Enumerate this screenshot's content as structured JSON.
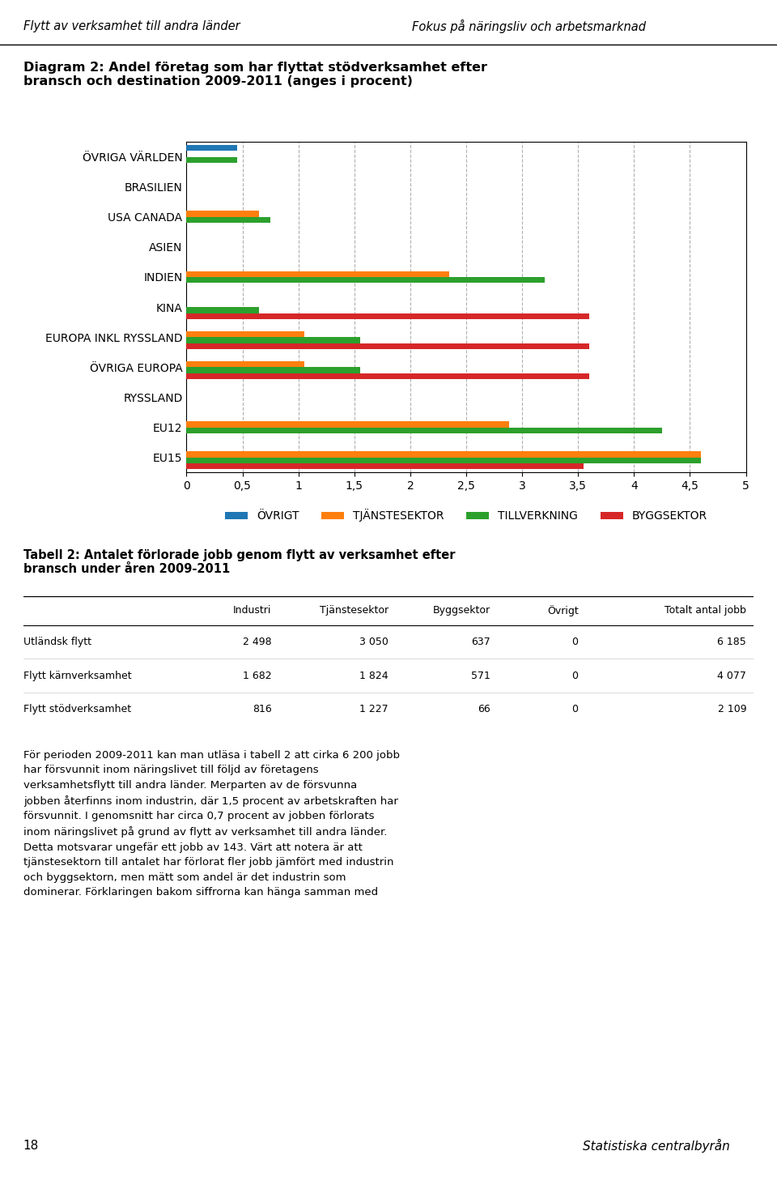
{
  "chart_data": {
    "type": "bar",
    "orientation": "horizontal",
    "title": "Diagram 2: Andel företag som har flyttat stödverksamhet efter\nbransch och destination 2009-2011 (anges i procent)",
    "categories": [
      "ÖVRIGA VÄRLDEN",
      "BRASILIEN",
      "USA CANADA",
      "ASIEN",
      "INDIEN",
      "KINA",
      "EUROPA INKL RYSSLAND",
      "ÖVRIGA EUROPA",
      "RYSSLAND",
      "EU12",
      "EU15"
    ],
    "series": [
      {
        "name": "ÖVRIGT",
        "values": [
          0.45,
          0.0,
          0.0,
          0.0,
          0.0,
          0.0,
          0.0,
          0.0,
          0.0,
          0.0,
          0.0
        ]
      },
      {
        "name": "TJÄNSTESEKTOR",
        "values": [
          0.0,
          0.0,
          0.65,
          0.0,
          2.35,
          0.0,
          1.05,
          1.05,
          0.0,
          2.88,
          4.6
        ]
      },
      {
        "name": "TILLVERKNING",
        "values": [
          0.45,
          0.0,
          0.75,
          0.0,
          3.2,
          0.65,
          1.55,
          1.55,
          0.0,
          4.25,
          4.6
        ]
      },
      {
        "name": "BYGGSEKTOR",
        "values": [
          0.0,
          0.0,
          0.0,
          0.0,
          0.0,
          3.6,
          3.6,
          3.6,
          0.0,
          0.0,
          3.55
        ]
      }
    ],
    "xlim": [
      0,
      5
    ],
    "xticks": [
      0,
      {
        "value": 0.5,
        "label": "0,5"
      },
      1,
      {
        "value": 1.5,
        "label": "1,5"
      },
      2,
      {
        "value": 2.5,
        "label": "2,5"
      },
      3,
      {
        "value": 3.5,
        "label": "3,5"
      },
      4,
      {
        "value": 4.5,
        "label": "4,5"
      },
      5
    ],
    "grid": true,
    "legend": "upper center",
    "annotations": [
      "Flytt av verksamhet till andra länder",
      "Fokus på näringsliv och arbetsmarknad",
      "Tabell 2: Antalet förlorade jobb genom flytt av verksamhet efter\nbransch under åren 2009-2011",
      "För perioden 2009-2011 kan man utläsa i tabell 2 att cirka 6 200 jobb\nhar försvunnit inom näringslivet till följd av företagens\nverksamhetsflytt till andra länder. Merparten av de försvunna\njobben återfinns inom industrin, där 1,5 procent av arbetskraften har\nförsvunnit. I genomsnitt har circa 0,7 procent av jobben förlorats\ninom näringslivet på grund av flytt av verksamhet till andra länder.\nDetta motsvarar ungefär ett jobb av 143. Värt att notera är att\ntjänstesektorn till antalet har förlorat fler jobb jämfört med industrin\noch byggsektorn, men mätt som andel är det industrin som\ndominerar. Förklaringen bakom siffrorna kan hänga samman med",
      "18",
      "Statistiska centralbyrån"
    ],
    "table": {
      "headers": [
        null,
        "Industri",
        "Tjänstesektor",
        "Byggsektor",
        "Övrigt",
        "Totalt antal jobb"
      ],
      "rows": [
        [
          "Utländsk flytt",
          "2 498",
          "3 050",
          "637",
          "0",
          "6 185"
        ],
        [
          "Flytt kärnverksamhet",
          "1 682",
          "1 824",
          "571",
          "0",
          "4 077"
        ],
        [
          "Flytt stödverksamhet",
          "816",
          "1 227",
          "66",
          "0",
          "2 109"
        ]
      ]
    }
  }
}
